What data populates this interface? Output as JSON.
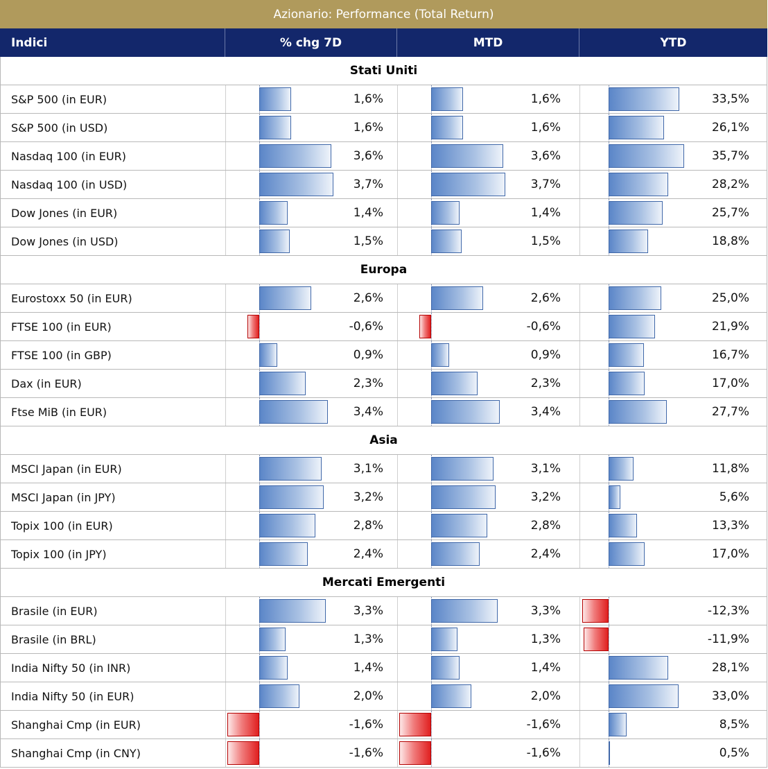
{
  "table": {
    "title": "Azionario: Performance (Total Return)",
    "headers": [
      "Indici",
      "% chg 7D",
      "MTD",
      "YTD"
    ],
    "sections": [
      {
        "name": "Stati Uniti",
        "rows": [
          {
            "label": "S&P 500 (in EUR)",
            "chg7d": 1.6,
            "mtd": 1.6,
            "ytd": 33.5,
            "chg7d_text": "1,6%",
            "mtd_text": "1,6%",
            "ytd_text": "33,5%"
          },
          {
            "label": "S&P 500 (in USD)",
            "chg7d": 1.6,
            "mtd": 1.6,
            "ytd": 26.1,
            "chg7d_text": "1,6%",
            "mtd_text": "1,6%",
            "ytd_text": "26,1%"
          },
          {
            "label": "Nasdaq 100 (in EUR)",
            "chg7d": 3.6,
            "mtd": 3.6,
            "ytd": 35.7,
            "chg7d_text": "3,6%",
            "mtd_text": "3,6%",
            "ytd_text": "35,7%"
          },
          {
            "label": "Nasdaq 100 (in USD)",
            "chg7d": 3.7,
            "mtd": 3.7,
            "ytd": 28.2,
            "chg7d_text": "3,7%",
            "mtd_text": "3,7%",
            "ytd_text": "28,2%"
          },
          {
            "label": "Dow Jones (in EUR)",
            "chg7d": 1.4,
            "mtd": 1.4,
            "ytd": 25.7,
            "chg7d_text": "1,4%",
            "mtd_text": "1,4%",
            "ytd_text": "25,7%"
          },
          {
            "label": "Dow Jones (in USD)",
            "chg7d": 1.5,
            "mtd": 1.5,
            "ytd": 18.8,
            "chg7d_text": "1,5%",
            "mtd_text": "1,5%",
            "ytd_text": "18,8%"
          }
        ]
      },
      {
        "name": "Europa",
        "rows": [
          {
            "label": "Eurostoxx 50 (in EUR)",
            "chg7d": 2.6,
            "mtd": 2.6,
            "ytd": 25.0,
            "chg7d_text": "2,6%",
            "mtd_text": "2,6%",
            "ytd_text": "25,0%"
          },
          {
            "label": "FTSE 100 (in EUR)",
            "chg7d": -0.6,
            "mtd": -0.6,
            "ytd": 21.9,
            "chg7d_text": "-0,6%",
            "mtd_text": "-0,6%",
            "ytd_text": "21,9%"
          },
          {
            "label": "FTSE 100 (in GBP)",
            "chg7d": 0.9,
            "mtd": 0.9,
            "ytd": 16.7,
            "chg7d_text": "0,9%",
            "mtd_text": "0,9%",
            "ytd_text": "16,7%"
          },
          {
            "label": "Dax (in EUR)",
            "chg7d": 2.3,
            "mtd": 2.3,
            "ytd": 17.0,
            "chg7d_text": "2,3%",
            "mtd_text": "2,3%",
            "ytd_text": "17,0%"
          },
          {
            "label": "Ftse MiB (in EUR)",
            "chg7d": 3.4,
            "mtd": 3.4,
            "ytd": 27.7,
            "chg7d_text": "3,4%",
            "mtd_text": "3,4%",
            "ytd_text": "27,7%"
          }
        ]
      },
      {
        "name": "Asia",
        "rows": [
          {
            "label": "MSCI Japan (in EUR)",
            "chg7d": 3.1,
            "mtd": 3.1,
            "ytd": 11.8,
            "chg7d_text": "3,1%",
            "mtd_text": "3,1%",
            "ytd_text": "11,8%"
          },
          {
            "label": "MSCI Japan (in JPY)",
            "chg7d": 3.2,
            "mtd": 3.2,
            "ytd": 5.6,
            "chg7d_text": "3,2%",
            "mtd_text": "3,2%",
            "ytd_text": "5,6%"
          },
          {
            "label": "Topix 100 (in EUR)",
            "chg7d": 2.8,
            "mtd": 2.8,
            "ytd": 13.3,
            "chg7d_text": "2,8%",
            "mtd_text": "2,8%",
            "ytd_text": "13,3%"
          },
          {
            "label": "Topix 100 (in JPY)",
            "chg7d": 2.4,
            "mtd": 2.4,
            "ytd": 17.0,
            "chg7d_text": "2,4%",
            "mtd_text": "2,4%",
            "ytd_text": "17,0%"
          }
        ]
      },
      {
        "name": "Mercati Emergenti",
        "rows": [
          {
            "label": "Brasile (in EUR)",
            "chg7d": 3.3,
            "mtd": 3.3,
            "ytd": -12.3,
            "chg7d_text": "3,3%",
            "mtd_text": "3,3%",
            "ytd_text": "-12,3%"
          },
          {
            "label": "Brasile (in BRL)",
            "chg7d": 1.3,
            "mtd": 1.3,
            "ytd": -11.9,
            "chg7d_text": "1,3%",
            "mtd_text": "1,3%",
            "ytd_text": "-11,9%"
          },
          {
            "label": "India Nifty 50 (in INR)",
            "chg7d": 1.4,
            "mtd": 1.4,
            "ytd": 28.1,
            "chg7d_text": "1,4%",
            "mtd_text": "1,4%",
            "ytd_text": "28,1%"
          },
          {
            "label": "India Nifty 50 (in EUR)",
            "chg7d": 2.0,
            "mtd": 2.0,
            "ytd": 33.0,
            "chg7d_text": "2,0%",
            "mtd_text": "2,0%",
            "ytd_text": "33,0%"
          },
          {
            "label": "Shanghai Cmp (in EUR)",
            "chg7d": -1.6,
            "mtd": -1.6,
            "ytd": 8.5,
            "chg7d_text": "-1,6%",
            "mtd_text": "-1,6%",
            "ytd_text": "8,5%"
          },
          {
            "label": "Shanghai Cmp (in CNY)",
            "chg7d": -1.6,
            "mtd": -1.6,
            "ytd": 0.5,
            "chg7d_text": "-1,6%",
            "mtd_text": "-1,6%",
            "ytd_text": "0,5%"
          }
        ]
      }
    ]
  },
  "colors": {
    "title_bg": "#b09a5c",
    "header_bg": "#13276b",
    "positive_bar": "#5b86c8",
    "negative_bar": "#e02020"
  }
}
